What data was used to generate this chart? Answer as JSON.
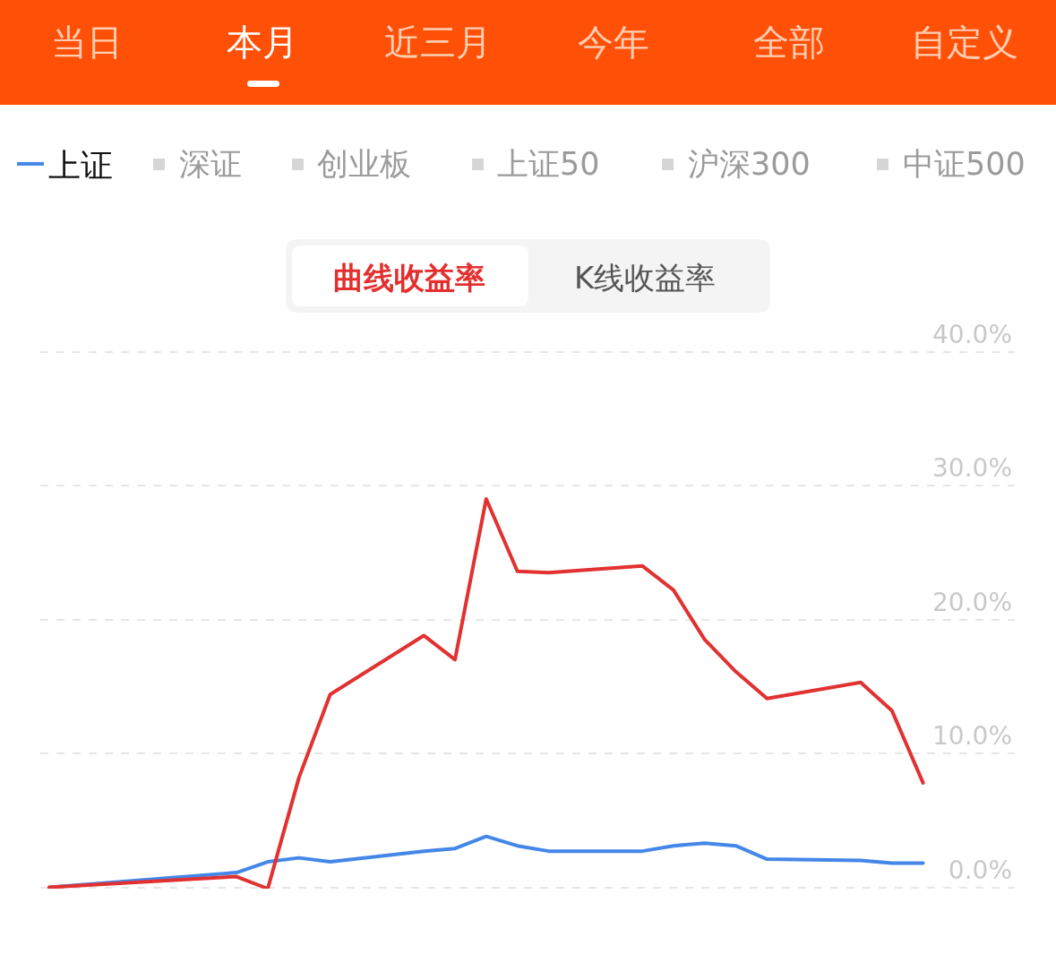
{
  "chart_data": {
    "type": "line",
    "categories": [
      null,
      null,
      null,
      null,
      null,
      null,
      null,
      null,
      null,
      null,
      null,
      null,
      null,
      null,
      null,
      null,
      null,
      null,
      null,
      null,
      null,
      null,
      null,
      null,
      null,
      null,
      null,
      null,
      null
    ],
    "series": [
      {
        "name": "上证",
        "color": "#4487e8",
        "values": [
          0.0,
          null,
          null,
          null,
          null,
          null,
          1.1,
          1.9,
          2.2,
          1.9,
          null,
          null,
          2.7,
          2.9,
          3.8,
          3.1,
          2.7,
          null,
          null,
          2.7,
          3.1,
          3.3,
          3.1,
          2.1,
          null,
          null,
          2.0,
          1.8,
          1.8
        ]
      },
      {
        "color": "#e23131",
        "values": [
          0.0,
          null,
          null,
          null,
          null,
          null,
          0.8,
          -0.1,
          8.2,
          14.4,
          null,
          null,
          18.8,
          17.0,
          29.0,
          23.6,
          23.5,
          null,
          null,
          24.0,
          22.2,
          18.5,
          16.1,
          14.1,
          null,
          null,
          15.3,
          13.2,
          7.8
        ]
      }
    ],
    "ylim": [
      -0.1,
      40.1
    ],
    "yticks": [
      {
        "value": 0,
        "label": "0.0%"
      },
      {
        "value": 10,
        "label": "10.0%"
      },
      {
        "value": 20,
        "label": "20.0%"
      },
      {
        "value": 30,
        "label": "30.0%"
      },
      {
        "value": 40,
        "label": "40.0%"
      }
    ],
    "grid": "y",
    "legend": "top left",
    "tick_labels": "y",
    "annotations": [
      "当日",
      "本月",
      "近三月",
      "今年",
      "全部",
      "自定义",
      "深证",
      "创业板",
      "上证50",
      "沪深300",
      "中证500",
      "曲线收益率",
      "K线收益率"
    ]
  }
}
